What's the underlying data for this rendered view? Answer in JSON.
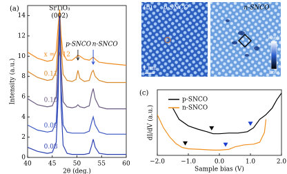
{
  "chart_data": [
    {
      "type": "line",
      "panel": "(a)",
      "xlabel": "2θ (deg.)",
      "ylabel": "Intensity (a.u.)",
      "xlim": [
        40,
        60
      ],
      "xticks": [
        40,
        45,
        50,
        55,
        60
      ],
      "ylim": [
        0,
        15
      ],
      "yticks": [
        0,
        2,
        4,
        6,
        8,
        10,
        12,
        14
      ],
      "annotations": [
        "SrTiO₃",
        "(002)",
        "p-SNCO",
        "n-SNCO"
      ],
      "x": [
        40,
        42,
        44,
        45,
        45.8,
        46.2,
        46.5,
        46.8,
        47.2,
        48,
        49,
        49.8,
        50.2,
        50.6,
        51.5,
        52.5,
        53,
        53.3,
        53.7,
        54.5,
        56,
        58,
        60
      ],
      "series": [
        {
          "name": "x = 0.12",
          "color": "#f08a20",
          "values": [
            10.4,
            9.8,
            9.5,
            9.6,
            10.5,
            13,
            14.6,
            12,
            10.2,
            9.6,
            9.6,
            9.9,
            10.1,
            10.0,
            9.7,
            9.6,
            9.8,
            9.9,
            9.7,
            9.4,
            9.3,
            9.2,
            9.1
          ]
        },
        {
          "name": "0.11",
          "color": "#d9882a",
          "values": [
            8.5,
            7.9,
            7.6,
            7.7,
            8.5,
            11.5,
            14,
            11,
            8.2,
            7.6,
            7.5,
            7.7,
            8.6,
            7.8,
            7.5,
            7.6,
            8.4,
            8.6,
            8.0,
            7.6,
            7.4,
            7.4,
            7.4
          ]
        },
        {
          "name": "0.10",
          "color": "#6a5a80",
          "values": [
            5.8,
            5.2,
            5.0,
            5.1,
            6,
            10,
            14,
            9,
            5.5,
            5.0,
            4.9,
            5.0,
            5.2,
            5.0,
            4.9,
            5.1,
            6.3,
            6.8,
            5.8,
            5.0,
            4.8,
            4.8,
            4.8
          ]
        },
        {
          "name": "0.09",
          "color": "#3a55c0",
          "values": [
            3.2,
            2.7,
            2.5,
            2.6,
            3.5,
            8,
            14,
            7,
            3.2,
            2.5,
            2.4,
            2.4,
            2.4,
            2.4,
            2.4,
            2.6,
            3.5,
            4.0,
            3.2,
            2.5,
            2.3,
            2.3,
            2.3
          ]
        },
        {
          "name": "0.08",
          "color": "#2a3fb0",
          "values": [
            1.0,
            0.6,
            0.4,
            0.5,
            1.5,
            6,
            14,
            5,
            1.2,
            0.4,
            0.3,
            0.3,
            0.3,
            0.3,
            0.3,
            0.4,
            1.2,
            1.8,
            1.0,
            0.4,
            0.3,
            0.3,
            0.3
          ]
        }
      ]
    },
    {
      "type": "line",
      "panel": "(c)",
      "xlabel": "Sample bias (V)",
      "ylabel": "dI/dV (a.u.)",
      "xlim": [
        -2,
        2
      ],
      "xticks": [
        {
          "value": -2,
          "label": "−2.0"
        },
        {
          "value": -1,
          "label": "−1.0"
        },
        {
          "value": 0,
          "label": "0.0"
        },
        {
          "value": 1,
          "label": "1.0"
        },
        {
          "value": 2,
          "label": "2.0"
        }
      ],
      "ylim": [
        0,
        1
      ],
      "series": [
        {
          "name": "p-SNCO",
          "color": "#000000",
          "x": [
            -1.5,
            -1.3,
            -1.0,
            -0.7,
            -0.4,
            -0.2,
            0,
            0.3,
            0.6,
            0.9,
            1.1,
            1.3,
            1.5,
            1.7,
            1.85,
            2.0
          ],
          "values": [
            0.72,
            0.55,
            0.45,
            0.4,
            0.36,
            0.33,
            0.33,
            0.34,
            0.34,
            0.36,
            0.42,
            0.55,
            0.62,
            0.72,
            0.85,
            0.95
          ]
        },
        {
          "name": "n-SNCO",
          "color": "#f0901e",
          "x": [
            -2,
            -1.8,
            -1.6,
            -1.4,
            -1.2,
            -1.0,
            -0.6,
            -0.2,
            0,
            0.3,
            0.5,
            0.8,
            1.1,
            1.3,
            1.45,
            1.5
          ],
          "values": [
            0.62,
            0.42,
            0.28,
            0.18,
            0.12,
            0.1,
            0.09,
            0.08,
            0.08,
            0.09,
            0.13,
            0.16,
            0.17,
            0.2,
            0.35,
            0.55
          ]
        }
      ],
      "markers": [
        {
          "x": -1.1,
          "y": 0.15,
          "color": "#000000"
        },
        {
          "x": 0.2,
          "y": 0.13,
          "color": "#1a3fd0"
        },
        {
          "x": -0.25,
          "y": 0.38,
          "color": "#000000"
        },
        {
          "x": 1.0,
          "y": 0.45,
          "color": "#1a3fd0"
        }
      ]
    }
  ],
  "image_panel": {
    "label": "(b)",
    "left_title": "p-SNCO",
    "right_title": "n-SNCO",
    "scale_bar": "1 nm",
    "colorbar_high": "High",
    "colorbar_low": "Low"
  }
}
